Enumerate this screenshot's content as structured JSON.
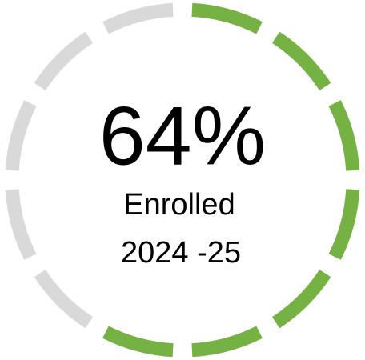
{
  "chart_data": {
    "type": "gauge",
    "value": 64,
    "value_label": "64%",
    "label": "Enrolled",
    "period": "2024 -25",
    "color": "#76b144",
    "track_color": "#d9d9d9"
  }
}
